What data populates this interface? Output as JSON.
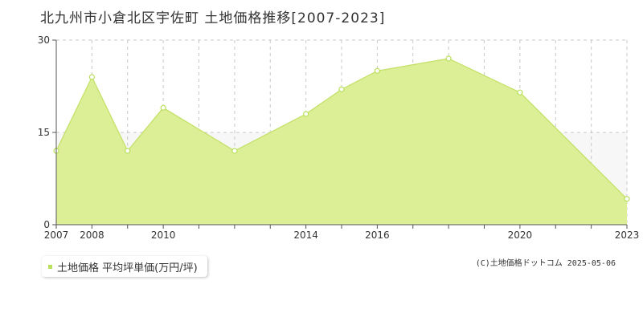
{
  "chart_data": {
    "type": "area",
    "title": "北九州市小倉北区宇佐町 土地価格推移[2007-2023]",
    "x": [
      2007,
      2008,
      2009,
      2010,
      2011,
      2012,
      2013,
      2014,
      2015,
      2016,
      2017,
      2018,
      2019,
      2020,
      2021,
      2022,
      2023
    ],
    "series": [
      {
        "name": "土地価格 平均坪単価(万円/坪)",
        "values": [
          12,
          24,
          12,
          19,
          12,
          18,
          22,
          25,
          27,
          21.5,
          4.2
        ],
        "x": [
          2007,
          2008,
          2009,
          2010,
          2012,
          2014,
          2015,
          2016,
          2018,
          2020,
          2023
        ]
      }
    ],
    "xlim": [
      2007,
      2023
    ],
    "ylim": [
      0,
      30
    ],
    "yticks": [
      "0",
      "15",
      "30"
    ],
    "xticks": [
      "2007",
      "2008",
      "2010",
      "2014",
      "2016",
      "2020",
      "2023"
    ],
    "grid": true,
    "legend": "bottom-left",
    "colors": {
      "fill": "#dcee96",
      "line": "#c2e065",
      "marker": "#b8e05a"
    }
  },
  "legend": {
    "label": "土地価格 平均坪単価(万円/坪)"
  },
  "copyright": "(C)土地価格ドットコム 2025-05-06"
}
